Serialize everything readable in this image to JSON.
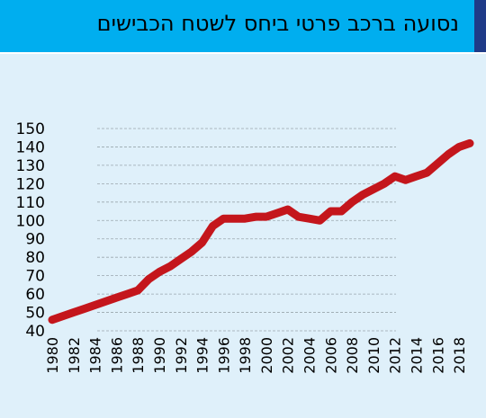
{
  "header": {
    "title": "נסועה ברכב פרטי ביחס לשטח הכבישים"
  },
  "colors": {
    "background": "#dff0fa",
    "header": "#00aeef",
    "accent": "#1f3b88",
    "line": "#c4161c",
    "grid": "#9aa6ad"
  },
  "chart_data": {
    "type": "line",
    "title": "נסועה ברכב פרטי ביחס לשטח הכבישים",
    "xlabel": "",
    "ylabel": "",
    "grid": true,
    "ylim": [
      40,
      150
    ],
    "xlim": [
      1980,
      2019
    ],
    "y_ticks": [
      "150",
      "140",
      "130",
      "120",
      "110",
      "100",
      "90",
      "80",
      "70",
      "60",
      "50",
      "40"
    ],
    "x_ticks": [
      "1980",
      "1982",
      "1984",
      "1986",
      "1988",
      "1990",
      "1992",
      "1994",
      "1996",
      "1998",
      "2000",
      "2002",
      "2004",
      "2006",
      "2008",
      "2010",
      "2012",
      "2014",
      "2016",
      "2018"
    ],
    "x": [
      1980,
      1981,
      1982,
      1983,
      1984,
      1985,
      1986,
      1987,
      1988,
      1989,
      1990,
      1991,
      1992,
      1993,
      1994,
      1995,
      1996,
      1997,
      1998,
      1999,
      2000,
      2001,
      2002,
      2003,
      2004,
      2005,
      2006,
      2007,
      2008,
      2009,
      2010,
      2011,
      2012,
      2013,
      2014,
      2015,
      2016,
      2017,
      2018,
      2019
    ],
    "series": [
      {
        "values": [
          46,
          48,
          50,
          52,
          54,
          56,
          58,
          60,
          62,
          68,
          72,
          75,
          79,
          83,
          88,
          97,
          101,
          101,
          101,
          102,
          102,
          104,
          106,
          102,
          101,
          100,
          105,
          105,
          110,
          114,
          117,
          120,
          124,
          122,
          124,
          126,
          131,
          136,
          140,
          142
        ]
      }
    ]
  }
}
